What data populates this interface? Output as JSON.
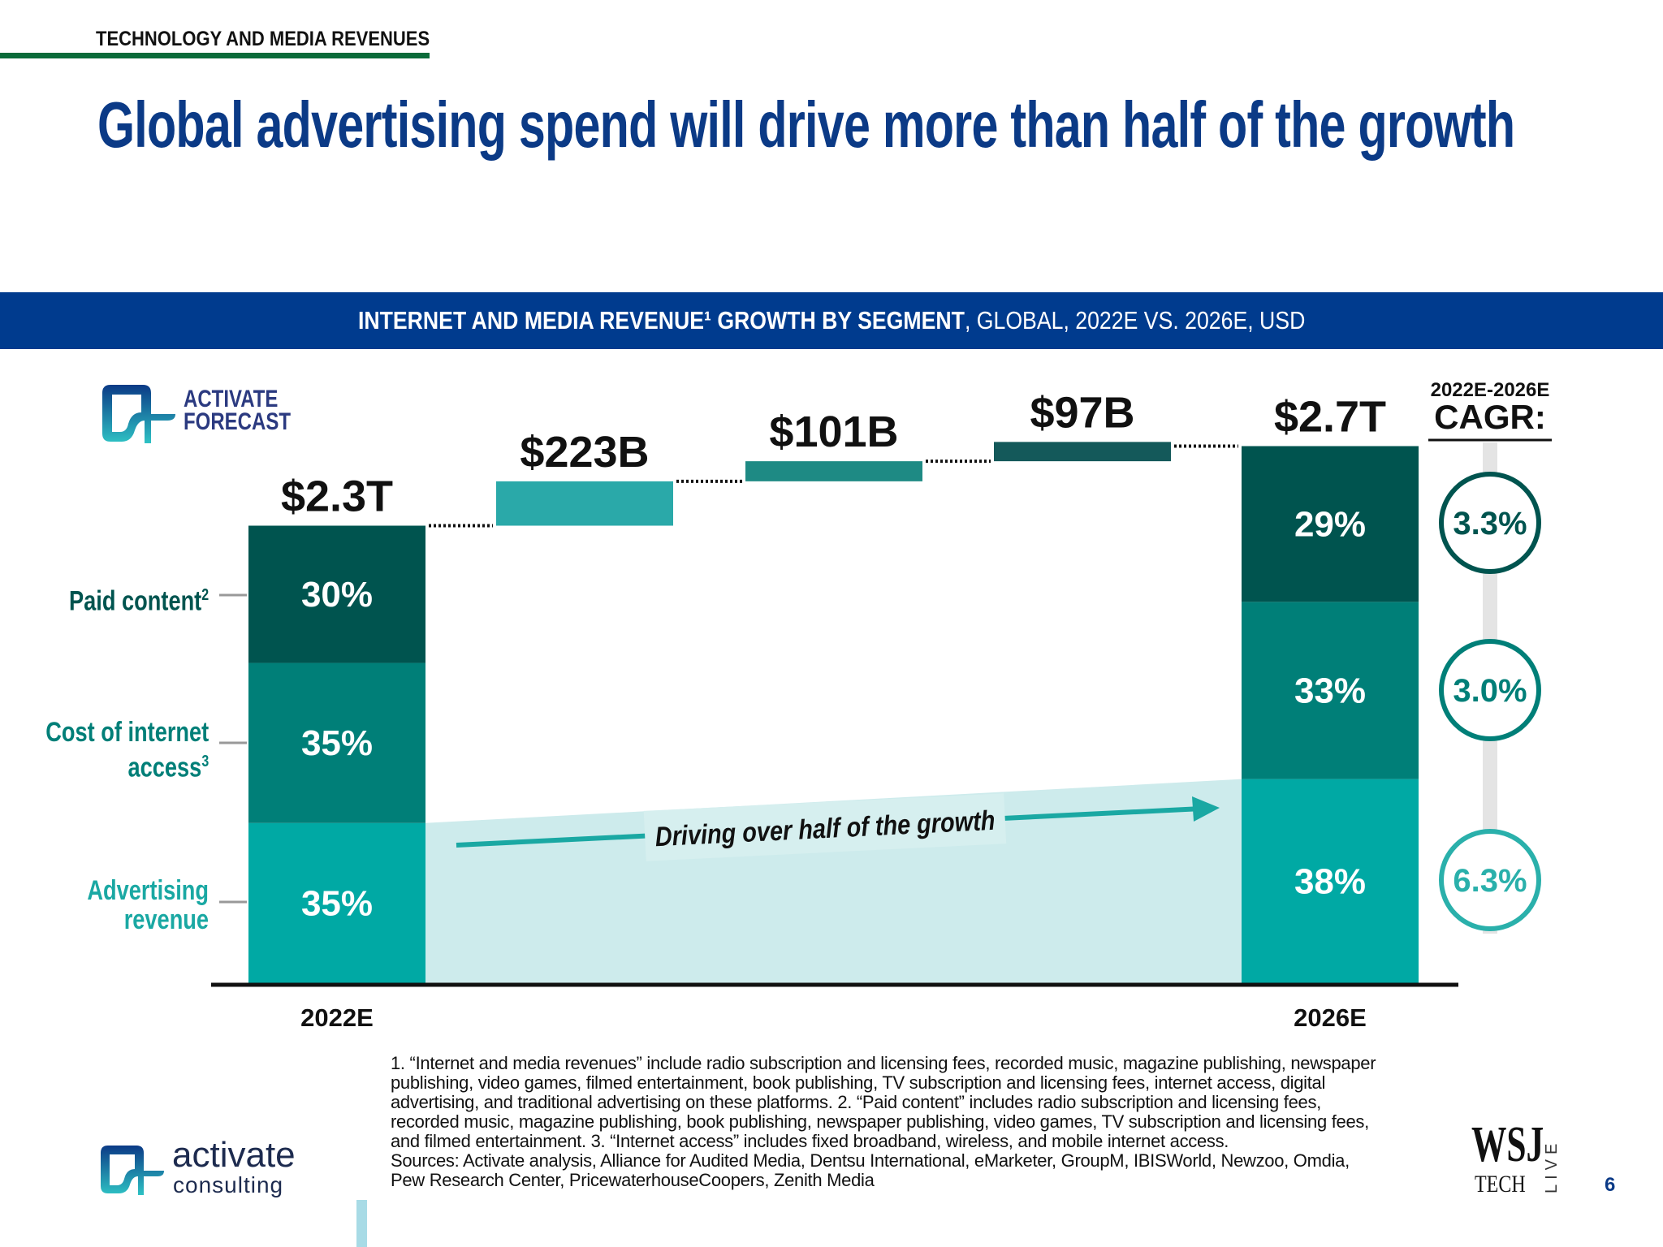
{
  "header": {
    "kicker": "TECHNOLOGY AND MEDIA REVENUES",
    "title": "Global advertising spend will drive more than half of the growth"
  },
  "band": {
    "bold": "INTERNET AND MEDIA REVENUE¹ GROWTH BY SEGMENT",
    "rest": ", GLOBAL, 2022E VS. 2026E, USD"
  },
  "forecast_logo": {
    "line1": "ACTIVATE",
    "line2": "FORECAST"
  },
  "chart_data": {
    "type": "waterfall-stacked-bar",
    "categories": [
      "2022E",
      "",
      "",
      "",
      "2026E"
    ],
    "totals": [
      {
        "category": "2022E",
        "value_trillion": 2.3,
        "label": "$2.3T"
      },
      {
        "category": "2026E",
        "value_trillion": 2.7,
        "label": "$2.7T"
      }
    ],
    "increments": [
      {
        "value_billion": 223,
        "label": "$223B",
        "segment": "Advertising revenue",
        "color": "#2aa9a9"
      },
      {
        "value_billion": 101,
        "label": "$101B",
        "segment": "Cost of internet access",
        "color": "#1e8a84"
      },
      {
        "value_billion": 97,
        "label": "$97B",
        "segment": "Paid content",
        "color": "#14595a"
      }
    ],
    "segments": [
      {
        "name": "Paid content",
        "sup": "2",
        "color": "#00544f",
        "share_2022": 30,
        "share_2026": 29,
        "label_2022": "30%",
        "label_2026": "29%",
        "cagr": "3.3%"
      },
      {
        "name_line1": "Cost of internet",
        "name_line2": "access",
        "sup": "3",
        "color": "#007f78",
        "share_2022": 35,
        "share_2026": 33,
        "label_2022": "35%",
        "label_2026": "33%",
        "cagr": "3.0%"
      },
      {
        "name_line1": "Advertising",
        "name_line2": "revenue",
        "color": "#00a9a4",
        "share_2022": 35,
        "share_2026": 38,
        "label_2022": "35%",
        "label_2026": "38%",
        "cagr": "6.3%"
      }
    ],
    "cagr_header": {
      "period": "2022E-2026E",
      "label": "CAGR:"
    },
    "annotation": "Driving over half of the growth",
    "highlight_color": "#cdebec"
  },
  "footnotes": [
    "1. “Internet and media revenues” include radio subscription and licensing fees, recorded music, magazine publishing, newspaper",
    "publishing, video games, filmed entertainment, book publishing, TV subscription and licensing fees, internet access, digital",
    "advertising, and traditional advertising on these platforms.  2. “Paid content” includes radio subscription and licensing fees,",
    "recorded music, magazine publishing, book publishing, newspaper publishing, video games, TV subscription and licensing fees,",
    "and filmed entertainment.  3. “Internet access” includes fixed broadband, wireless, and mobile internet access.",
    "Sources: Activate analysis, Alliance for Audited Media, Dentsu International, eMarketer, GroupM, IBISWorld, Newzoo, Omdia,",
    "Pew Research Center, PricewaterhouseCoopers, Zenith Media"
  ],
  "footer": {
    "brand_line1": "activate",
    "brand_line2": "consulting",
    "wsj": "WSJ",
    "wsj_tech": "TECH",
    "wsj_live": "LIVE",
    "page_number": "6"
  },
  "colors": {
    "title": "#0b3a86",
    "band": "#003b8e",
    "kicker_rule": "#0b6b3a"
  }
}
